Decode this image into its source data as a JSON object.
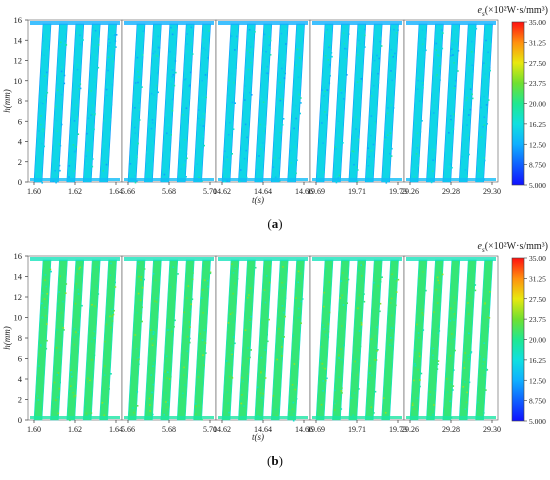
{
  "chart_data": [
    {
      "type": "heatmap",
      "panel": "(a)",
      "ylabel": "h(mm)",
      "xlabel": "t(s)",
      "ylim": [
        0,
        16
      ],
      "yticks": [
        0,
        2,
        4,
        6,
        8,
        10,
        12,
        14,
        16
      ],
      "colorbar_title": "e",
      "colorbar_sub": "s",
      "colorbar_unit": "(×10²W·s/mm³)",
      "colorbar_range": [
        5.0,
        35.0
      ],
      "colorbar_ticks": [
        "35.00",
        "31.25",
        "27.50",
        "23.75",
        "20.00",
        "16.25",
        "12.50",
        "8.750",
        "5.000"
      ],
      "dominant_level": 15.5,
      "segments": [
        {
          "xlim": [
            1.6,
            1.64
          ],
          "ticks": [
            "1.60",
            "1.62",
            "1.64"
          ],
          "tracks": 5
        },
        {
          "xlim": [
            5.66,
            5.7
          ],
          "ticks": [
            "5.66",
            "5.68",
            "5.70"
          ],
          "tracks": 5
        },
        {
          "xlim": [
            14.62,
            14.66
          ],
          "ticks": [
            "14.62",
            "14.64",
            "14.66"
          ],
          "tracks": 5
        },
        {
          "xlim": [
            19.69,
            19.73
          ],
          "ticks": [
            "19.69",
            "19.71",
            "19.73"
          ],
          "tracks": 5
        },
        {
          "xlim": [
            29.26,
            29.3
          ],
          "ticks": [
            "29.26",
            "29.28",
            "29.30"
          ],
          "tracks": 5
        }
      ]
    },
    {
      "type": "heatmap",
      "panel": "(b)",
      "ylabel": "h(mm)",
      "xlabel": "t(s)",
      "ylim": [
        0,
        16
      ],
      "yticks": [
        0,
        2,
        4,
        6,
        8,
        10,
        12,
        14,
        16
      ],
      "colorbar_title": "e",
      "colorbar_sub": "s",
      "colorbar_unit": "(×10²W·s/mm³)",
      "colorbar_range": [
        5.0,
        35.0
      ],
      "colorbar_ticks": [
        "35.00",
        "31.25",
        "27.50",
        "23.75",
        "20.00",
        "16.25",
        "12.50",
        "8.750",
        "5.000"
      ],
      "dominant_level": 21.0,
      "segments": [
        {
          "xlim": [
            1.6,
            1.64
          ],
          "ticks": [
            "1.60",
            "1.62",
            "1.64"
          ],
          "tracks": 5
        },
        {
          "xlim": [
            5.66,
            5.7
          ],
          "ticks": [
            "5.66",
            "5.68",
            "5.70"
          ],
          "tracks": 5
        },
        {
          "xlim": [
            14.62,
            14.66
          ],
          "ticks": [
            "14.62",
            "14.64",
            "14.66"
          ],
          "tracks": 5
        },
        {
          "xlim": [
            19.69,
            19.73
          ],
          "ticks": [
            "19.69",
            "19.71",
            "19.73"
          ],
          "tracks": 5
        },
        {
          "xlim": [
            29.26,
            29.3
          ],
          "ticks": [
            "29.26",
            "29.28",
            "29.30"
          ],
          "tracks": 5
        }
      ]
    }
  ]
}
